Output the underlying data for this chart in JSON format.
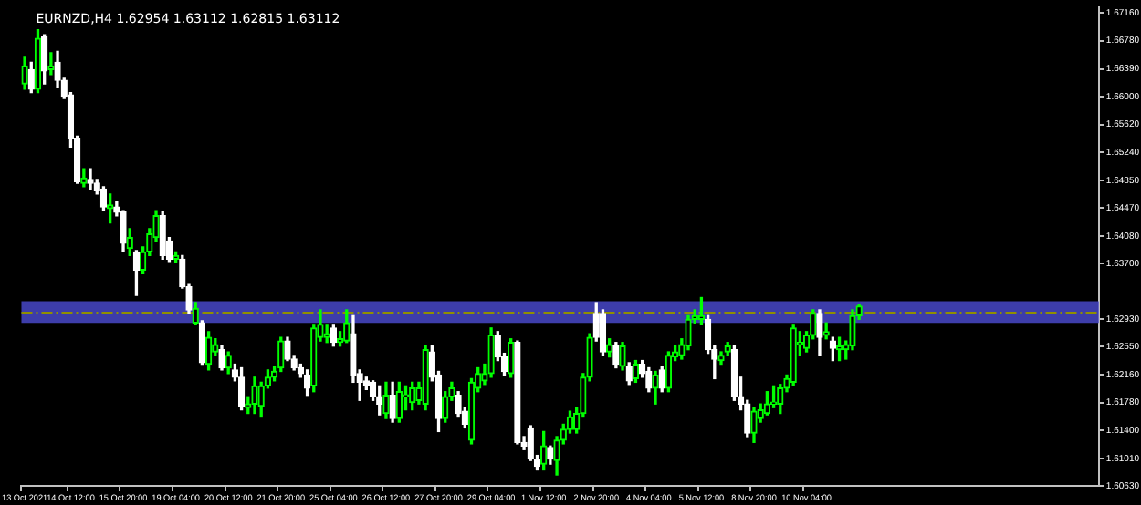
{
  "chart_data": {
    "type": "candlestick",
    "title": "EURNZD,H4 1.62954 1.63112 1.62815 1.63112",
    "colors": [
      "#00ff00",
      "#ffffff",
      "#00ff00",
      "#ffffff",
      "#00ff00",
      "#ffffff",
      "#ffffff",
      "#ffffff",
      "#ffffff",
      "#00ff00",
      "#ffffff",
      "#ffffff",
      "#ffffff",
      "#00ff00",
      "#ffffff",
      "#ffffff",
      "#00ff00",
      "#ffffff",
      "#00ff00",
      "#00ff00",
      "#00ff00",
      "#ffffff",
      "#ffffff",
      "#00ff00",
      "#ffffff",
      "#ffffff",
      "#00ff00",
      "#ffffff",
      "#00ff00",
      "#00ff00",
      "#ffffff",
      "#00ff00",
      "#ffffff",
      "#ffffff",
      "#00ff00",
      "#00ff00",
      "#00ff00",
      "#00ff00",
      "#00ff00",
      "#00ff00",
      "#ffffff",
      "#ffffff",
      "#ffffff",
      "#ffffff",
      "#00ff00",
      "#00ff00",
      "#00ff00",
      "#ffffff",
      "#00ff00",
      "#00ff00",
      "#ffffff",
      "#ffffff",
      "#ffffff",
      "#ffffff",
      "#ffffff",
      "#00ff00",
      "#ffffff",
      "#00ff00",
      "#00ff00",
      "#00ff00",
      "#00ff00",
      "#00ff00",
      "#ffffff",
      "#ffffff",
      "#00ff00",
      "#00ff00",
      "#ffffff",
      "#ffffff",
      "#00ff00",
      "#00ff00",
      "#00ff00",
      "#00ff00",
      "#ffffff",
      "#ffffff",
      "#00ff00",
      "#ffffff",
      "#ffffff",
      "#ffffff",
      "#ffffff",
      "#00ff00",
      "#ffffff",
      "#00ff00",
      "#00ff00",
      "#00ff00",
      "#00ff00",
      "#00ff00",
      "#00ff00",
      "#ffffff",
      "#ffffff",
      "#00ff00",
      "#ffffff",
      "#00ff00",
      "#ffffff",
      "#00ff00",
      "#ffffff",
      "#ffffff",
      "#00ff00",
      "#ffffff",
      "#00ff00",
      "#00ff00",
      "#00ff00",
      "#00ff00",
      "#00ff00",
      "#00ff00",
      "#ffffff",
      "#ffffff",
      "#00ff00",
      "#00ff00",
      "#ffffff",
      "#ffffff",
      "#ffffff",
      "#00ff00",
      "#00ff00",
      "#00ff00",
      "#00ff00",
      "#00ff00",
      "#00ff00",
      "#00ff00",
      "#00ff00",
      "#00ff00",
      "#00ff00",
      "#ffffff",
      "#00ff00",
      "#ffffff",
      "#00ff00",
      "#00ff00",
      "#00ff00",
      "#00ff00",
      null,
      null,
      null,
      null,
      null,
      null,
      null,
      null,
      null,
      null,
      null,
      null,
      null,
      null,
      null,
      null,
      null,
      null,
      null,
      null,
      null,
      null,
      null,
      null,
      null,
      null,
      null,
      null,
      null,
      null,
      null,
      null,
      null,
      null,
      null,
      null
    ],
    "categories": [
      "13 Oct 2021",
      null,
      null,
      null,
      null,
      null,
      null,
      "14 Oct 12:00",
      null,
      null,
      null,
      null,
      null,
      null,
      null,
      "15 Oct 20:00",
      null,
      null,
      null,
      null,
      null,
      null,
      null,
      "19 Oct 04:00",
      null,
      null,
      null,
      null,
      null,
      null,
      null,
      "20 Oct 12:00",
      null,
      null,
      null,
      null,
      null,
      null,
      null,
      "21 Oct 20:00",
      null,
      null,
      null,
      null,
      null,
      null,
      null,
      "25 Oct 04:00",
      null,
      null,
      null,
      null,
      null,
      null,
      null,
      "26 Oct 12:00",
      null,
      null,
      null,
      null,
      null,
      null,
      null,
      "27 Oct 20:00",
      null,
      null,
      null,
      null,
      null,
      null,
      null,
      "29 Oct 04:00",
      null,
      null,
      null,
      null,
      null,
      null,
      null,
      "1 Nov 12:00",
      null,
      null,
      null,
      null,
      null,
      null,
      null,
      "2 Nov 20:00",
      null,
      null,
      null,
      null,
      null,
      null,
      null,
      "4 Nov 04:00",
      null,
      null,
      null,
      null,
      null,
      null,
      null,
      "5 Nov 12:00",
      null,
      null,
      null,
      null,
      null,
      null,
      null,
      "8 Nov 20:00",
      null,
      null,
      null,
      null,
      null,
      null,
      null,
      "10 Nov 04:00",
      null,
      null,
      null,
      null,
      null,
      null,
      null,
      null,
      null,
      null,
      null,
      null,
      null,
      null,
      null,
      null,
      null,
      null,
      null,
      null,
      null,
      null,
      null,
      null,
      null,
      null,
      null,
      null,
      null,
      null,
      null,
      null,
      null,
      null,
      null,
      null,
      null,
      null,
      null,
      null,
      null,
      null,
      null,
      null
    ],
    "ohlc": [
      [
        1.6618,
        1.6656,
        1.6611,
        1.6643
      ],
      [
        1.6638,
        1.6648,
        1.6606,
        1.6611
      ],
      [
        1.6611,
        1.6693,
        1.6606,
        1.6681
      ],
      [
        1.6683,
        1.6686,
        1.6618,
        1.6636
      ],
      [
        1.6638,
        1.6661,
        1.6631,
        1.6643
      ],
      [
        1.6648,
        1.6663,
        1.6613,
        1.6623
      ],
      [
        1.6623,
        1.6626,
        1.6598,
        1.6601
      ],
      [
        1.6603,
        1.6606,
        1.6531,
        1.6543
      ],
      [
        1.6543,
        1.6546,
        1.6481,
        1.6483
      ],
      [
        1.6481,
        1.6501,
        1.6476,
        1.6488
      ],
      [
        1.6486,
        1.6501,
        1.6473,
        1.6481
      ],
      [
        1.6481,
        1.6486,
        1.6466,
        1.6471
      ],
      [
        1.6473,
        1.6476,
        1.6443,
        1.6448
      ],
      [
        1.6446,
        1.6466,
        1.6426,
        1.6451
      ],
      [
        1.6448,
        1.6456,
        1.6436,
        1.6441
      ],
      [
        1.6441,
        1.6443,
        1.6386,
        1.6398
      ],
      [
        1.6391,
        1.6418,
        1.6381,
        1.6406
      ],
      [
        1.6386,
        1.6388,
        1.6326,
        1.6361
      ],
      [
        1.6361,
        1.6393,
        1.6356,
        1.6386
      ],
      [
        1.6386,
        1.6418,
        1.6381,
        1.6411
      ],
      [
        1.6406,
        1.6443,
        1.6401,
        1.6436
      ],
      [
        1.6436,
        1.6441,
        1.6376,
        1.6381
      ],
      [
        1.6401,
        1.6406,
        1.6373,
        1.6376
      ],
      [
        1.6376,
        1.6386,
        1.6371,
        1.6381
      ],
      [
        1.6376,
        1.6381,
        1.6336,
        1.6338
      ],
      [
        1.6338,
        1.6341,
        1.6301,
        1.6306
      ],
      [
        1.6288,
        1.6316,
        1.6286,
        1.6308
      ],
      [
        1.6288,
        1.6291,
        1.6231,
        1.6233
      ],
      [
        1.6231,
        1.6276,
        1.6223,
        1.6268
      ],
      [
        1.6248,
        1.6266,
        1.6243,
        1.6258
      ],
      [
        1.6251,
        1.6256,
        1.6223,
        1.6226
      ],
      [
        1.6226,
        1.6248,
        1.6218,
        1.6243
      ],
      [
        1.6223,
        1.6231,
        1.6208,
        1.6213
      ],
      [
        1.6213,
        1.6226,
        1.6168,
        1.6173
      ],
      [
        1.6171,
        1.6186,
        1.6163,
        1.6176
      ],
      [
        1.6176,
        1.6213,
        1.6163,
        1.6201
      ],
      [
        1.6173,
        1.6206,
        1.6158,
        1.6201
      ],
      [
        1.6201,
        1.6223,
        1.6198,
        1.6213
      ],
      [
        1.6213,
        1.6228,
        1.6208,
        1.6221
      ],
      [
        1.6226,
        1.6268,
        1.6221,
        1.6263
      ],
      [
        1.6263,
        1.6268,
        1.6236,
        1.6238
      ],
      [
        1.6238,
        1.6243,
        1.6223,
        1.6226
      ],
      [
        1.6226,
        1.6231,
        1.6213,
        1.6218
      ],
      [
        1.6216,
        1.6223,
        1.6188,
        1.6198
      ],
      [
        1.6201,
        1.6286,
        1.6193,
        1.6281
      ],
      [
        1.6268,
        1.6306,
        1.6263,
        1.6286
      ],
      [
        1.6268,
        1.6286,
        1.6261,
        1.6273
      ],
      [
        1.6281,
        1.6286,
        1.6256,
        1.6261
      ],
      [
        1.6261,
        1.6276,
        1.6256,
        1.6266
      ],
      [
        1.6263,
        1.6306,
        1.6261,
        1.6288
      ],
      [
        1.6273,
        1.6298,
        1.6206,
        1.6216
      ],
      [
        1.6218,
        1.6223,
        1.6181,
        1.6206
      ],
      [
        1.6208,
        1.6213,
        1.6196,
        1.6201
      ],
      [
        1.6206,
        1.6208,
        1.6181,
        1.6186
      ],
      [
        1.6186,
        1.6201,
        1.6161,
        1.6176
      ],
      [
        1.6163,
        1.6206,
        1.6156,
        1.6188
      ],
      [
        1.6188,
        1.6206,
        1.6151,
        1.6156
      ],
      [
        1.6156,
        1.6206,
        1.6151,
        1.6193
      ],
      [
        1.6186,
        1.6201,
        1.6168,
        1.6188
      ],
      [
        1.6178,
        1.6206,
        1.6168,
        1.6198
      ],
      [
        1.6181,
        1.6206,
        1.6176,
        1.6198
      ],
      [
        1.6176,
        1.6256,
        1.6168,
        1.6251
      ],
      [
        1.6248,
        1.6256,
        1.6208,
        1.6213
      ],
      [
        1.6216,
        1.6221,
        1.6138,
        1.6156
      ],
      [
        1.6156,
        1.6193,
        1.6151,
        1.6186
      ],
      [
        1.6186,
        1.6206,
        1.6181,
        1.6198
      ],
      [
        1.6188,
        1.6193,
        1.6158,
        1.6163
      ],
      [
        1.6166,
        1.6171,
        1.6143,
        1.6148
      ],
      [
        1.6126,
        1.6211,
        1.6121,
        1.6206
      ],
      [
        1.6198,
        1.6226,
        1.6193,
        1.6218
      ],
      [
        1.6208,
        1.6231,
        1.6203,
        1.6218
      ],
      [
        1.6218,
        1.6281,
        1.6213,
        1.6271
      ],
      [
        1.6271,
        1.6276,
        1.6236,
        1.6241
      ],
      [
        1.6241,
        1.6246,
        1.6216,
        1.6221
      ],
      [
        1.6218,
        1.6266,
        1.6213,
        1.6261
      ],
      [
        1.6261,
        1.6263,
        1.6121,
        1.6123
      ],
      [
        1.6123,
        1.6131,
        1.6113,
        1.6118
      ],
      [
        1.6143,
        1.6146,
        1.6098,
        1.61
      ],
      [
        1.61,
        1.6105,
        1.6085,
        1.609
      ],
      [
        1.6093,
        1.6138,
        1.6085,
        1.6118
      ],
      [
        1.6116,
        1.6118,
        1.6093,
        1.61
      ],
      [
        1.6098,
        1.6131,
        1.6078,
        1.6126
      ],
      [
        1.6126,
        1.6148,
        1.6121,
        1.6141
      ],
      [
        1.6141,
        1.6166,
        1.6136,
        1.6158
      ],
      [
        1.6141,
        1.6171,
        1.6136,
        1.6163
      ],
      [
        1.6163,
        1.6218,
        1.6158,
        1.6213
      ],
      [
        1.6213,
        1.6273,
        1.6208,
        1.6268
      ],
      [
        1.6301,
        1.6316,
        1.6263,
        1.6268
      ],
      [
        1.6301,
        1.6306,
        1.6243,
        1.6248
      ],
      [
        1.6248,
        1.6266,
        1.6241,
        1.6258
      ],
      [
        1.6256,
        1.6261,
        1.6226,
        1.6231
      ],
      [
        1.6228,
        1.6261,
        1.6223,
        1.6256
      ],
      [
        1.6228,
        1.6233,
        1.6203,
        1.6208
      ],
      [
        1.6211,
        1.6236,
        1.6206,
        1.6231
      ],
      [
        1.6231,
        1.6236,
        1.6213,
        1.6218
      ],
      [
        1.6221,
        1.6226,
        1.6193,
        1.6198
      ],
      [
        1.6198,
        1.6221,
        1.6176,
        1.6216
      ],
      [
        1.6223,
        1.6228,
        1.6193,
        1.6198
      ],
      [
        1.6198,
        1.6248,
        1.6193,
        1.6243
      ],
      [
        1.6241,
        1.6256,
        1.6236,
        1.6248
      ],
      [
        1.6243,
        1.6266,
        1.6238,
        1.6258
      ],
      [
        1.6256,
        1.6298,
        1.6251,
        1.6293
      ],
      [
        1.6293,
        1.6306,
        1.6288,
        1.6298
      ],
      [
        1.6293,
        1.6323,
        1.6286,
        1.6298
      ],
      [
        1.6293,
        1.6298,
        1.6246,
        1.6251
      ],
      [
        1.6251,
        1.6256,
        1.6211,
        1.6238
      ],
      [
        1.6236,
        1.6248,
        1.6231,
        1.6243
      ],
      [
        1.6248,
        1.6261,
        1.6243,
        1.6256
      ],
      [
        1.6251,
        1.6256,
        1.6181,
        1.6186
      ],
      [
        1.6186,
        1.6213,
        1.6168,
        1.6176
      ],
      [
        1.6176,
        1.6181,
        1.6131,
        1.6136
      ],
      [
        1.6136,
        1.6171,
        1.6123,
        1.6166
      ],
      [
        1.6156,
        1.6176,
        1.6151,
        1.6168
      ],
      [
        1.6163,
        1.6193,
        1.6161,
        1.6176
      ],
      [
        1.6176,
        1.6201,
        1.6171,
        1.6178
      ],
      [
        1.6176,
        1.6203,
        1.6163,
        1.6198
      ],
      [
        1.6198,
        1.6216,
        1.6193,
        1.6211
      ],
      [
        1.6206,
        1.6286,
        1.6201,
        1.6281
      ],
      [
        1.6258,
        1.6276,
        1.6243,
        1.6261
      ],
      [
        1.6253,
        1.6276,
        1.6248,
        1.6271
      ],
      [
        1.6271,
        1.6306,
        1.6266,
        1.6301
      ],
      [
        1.6301,
        1.6306,
        1.6243,
        1.6268
      ],
      [
        1.6271,
        1.6288,
        1.6266,
        1.6276
      ],
      [
        1.6263,
        1.6268,
        1.6236,
        1.6253
      ],
      [
        1.6251,
        1.6268,
        1.6236,
        1.6256
      ],
      [
        1.6251,
        1.6263,
        1.6238,
        1.6258
      ],
      [
        1.6256,
        1.6306,
        1.6251,
        1.6298
      ],
      [
        1.6298,
        1.6313,
        1.6293,
        1.6311
      ],
      null,
      null,
      null,
      null,
      null,
      null,
      null,
      null,
      null,
      null,
      null,
      null,
      null,
      null,
      null,
      null,
      null,
      null,
      null,
      null,
      null,
      null,
      null,
      null,
      null,
      null,
      null,
      null,
      null,
      null,
      null,
      null,
      null,
      null,
      null,
      null
    ],
    "ylim": [
      1.6063,
      1.6724
    ],
    "yticks": [
      {
        "value": 1.6716,
        "label": "1.67160"
      },
      {
        "value": 1.6678,
        "label": "1.66780"
      },
      {
        "value": 1.6639,
        "label": "1.66390"
      },
      {
        "value": 1.66,
        "label": "1.66000"
      },
      {
        "value": 1.6562,
        "label": "1.65620"
      },
      {
        "value": 1.6524,
        "label": "1.65240"
      },
      {
        "value": 1.6485,
        "label": "1.64850"
      },
      {
        "value": 1.6447,
        "label": "1.64470"
      },
      {
        "value": 1.6408,
        "label": "1.64080"
      },
      {
        "value": 1.637,
        "label": "1.63700"
      },
      {
        "value": 1.6293,
        "label": "1.62930"
      },
      {
        "value": 1.6255,
        "label": "1.62550"
      },
      {
        "value": 1.6216,
        "label": "1.62160"
      },
      {
        "value": 1.6178,
        "label": "1.61780"
      },
      {
        "value": 1.614,
        "label": "1.61400"
      },
      {
        "value": 1.6101,
        "label": "1.61010"
      },
      {
        "value": 1.6063,
        "label": "1.60630"
      }
    ],
    "bands": [
      {
        "axis": "y",
        "from": 1.6288,
        "to": 1.6318,
        "color": "#4848c8"
      }
    ],
    "ref_lines": [
      {
        "axis": "y",
        "value": 1.6303,
        "color": "#909000",
        "line_style": "dashed"
      }
    ],
    "grid": false,
    "legend": false
  }
}
